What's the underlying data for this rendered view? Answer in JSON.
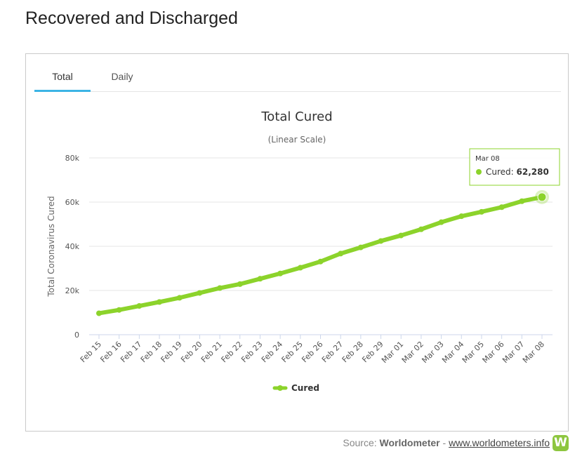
{
  "page": {
    "title": "Recovered and Discharged"
  },
  "tabs": [
    {
      "label": "Total",
      "active": true
    },
    {
      "label": "Daily",
      "active": false
    }
  ],
  "source": {
    "prefix": "Source: ",
    "brand": "Worldometer",
    "separator": " - ",
    "link_text": "www.worldometers.info",
    "logo_letter": "W"
  },
  "colors": {
    "series": "#8cd32b",
    "tab_active": "#3cb4e5",
    "logo": "#8dc63f"
  },
  "chart_data": {
    "type": "line",
    "title": "Total Cured",
    "subtitle": "(Linear Scale)",
    "ylabel": "Total Coronavirus Cured",
    "xlabel": "",
    "ylim": [
      0,
      80000
    ],
    "yticks": [
      {
        "value": 0,
        "label": "0"
      },
      {
        "value": 20000,
        "label": "20k"
      },
      {
        "value": 40000,
        "label": "40k"
      },
      {
        "value": 60000,
        "label": "60k"
      },
      {
        "value": 80000,
        "label": "80k"
      }
    ],
    "categories": [
      "Feb 15",
      "Feb 16",
      "Feb 17",
      "Feb 18",
      "Feb 19",
      "Feb 20",
      "Feb 21",
      "Feb 22",
      "Feb 23",
      "Feb 24",
      "Feb 25",
      "Feb 26",
      "Feb 27",
      "Feb 28",
      "Feb 29",
      "Mar 01",
      "Mar 02",
      "Mar 03",
      "Mar 04",
      "Mar 05",
      "Mar 06",
      "Mar 07",
      "Mar 08"
    ],
    "series": [
      {
        "name": "Cured",
        "values": [
          9700,
          11200,
          13000,
          14800,
          16700,
          18900,
          21100,
          22900,
          25300,
          27700,
          30300,
          33100,
          36700,
          39500,
          42400,
          44900,
          47700,
          50900,
          53600,
          55600,
          57700,
          60400,
          62280
        ]
      }
    ],
    "grid": true,
    "legend": "bottom-center",
    "tooltip": {
      "date": "Mar 08",
      "series": "Cured",
      "value": "62,280"
    }
  }
}
